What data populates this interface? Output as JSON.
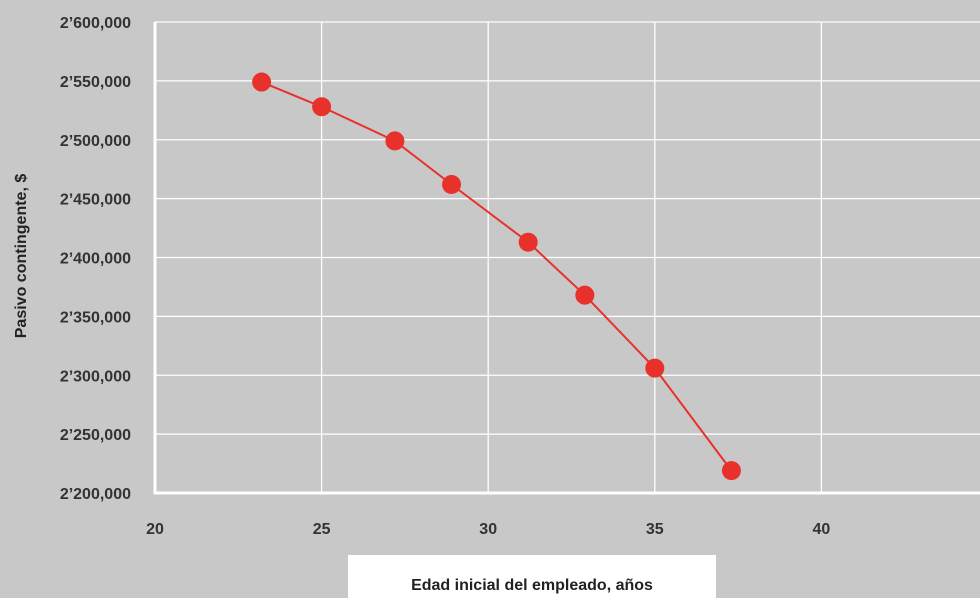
{
  "chart_data": {
    "type": "line",
    "xlabel": "Edad inicial del empleado, años",
    "ylabel": "Pasivo contingente, $",
    "xlim": [
      20,
      45
    ],
    "ylim": [
      2200000,
      2600000
    ],
    "x_ticks": [
      20,
      25,
      30,
      35,
      40
    ],
    "x_tick_labels": [
      "20",
      "25",
      "30",
      "35",
      "40"
    ],
    "y_ticks": [
      2200000,
      2250000,
      2300000,
      2350000,
      2400000,
      2450000,
      2500000,
      2550000,
      2600000
    ],
    "y_tick_labels": [
      "2’200,000",
      "2’250,000",
      "2’300,000",
      "2’350,000",
      "2’400,000",
      "2’450,000",
      "2’500,000",
      "2’550,000",
      "2’600,000"
    ],
    "grid": true,
    "series": [
      {
        "x": [
          23.2,
          25.0,
          27.2,
          28.9,
          31.2,
          32.9,
          35.0,
          37.3
        ],
        "y": [
          2549000,
          2528000,
          2499000,
          2462000,
          2413000,
          2368000,
          2306000,
          2219000
        ]
      }
    ],
    "colors": {
      "line": "#e8312a",
      "marker": "#e8312a",
      "grid": "#ffffff",
      "background": "#c8c8c8",
      "label_box": "#ffffff"
    }
  }
}
